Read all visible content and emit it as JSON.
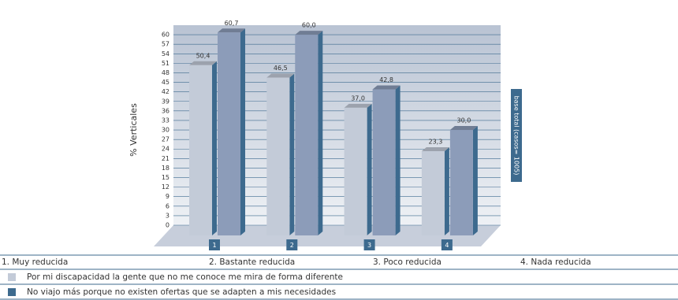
{
  "chart_data": {
    "type": "bar",
    "y_label": "% Verticales",
    "side_note": "base total (casos= 1005)",
    "categories": [
      "1",
      "2",
      "3",
      "4"
    ],
    "category_names": [
      "1.  Muy reducida",
      "2.  Bastante reducida",
      "3.  Poco reducida",
      "4.  Nada reducida"
    ],
    "series": [
      {
        "name": "Por mi discapacidad la gente que no me conoce me mira de forma diferente",
        "color": "#c3cbd8",
        "values": [
          50.4,
          46.5,
          37.0,
          23.3
        ],
        "value_labels": [
          "50,4",
          "46,5",
          "37,0",
          "23,3"
        ]
      },
      {
        "name": "No viajo más porque no existen ofertas que se adapten a mis necesidades",
        "color": "#8c9cb9",
        "values": [
          60.7,
          60.0,
          42.8,
          30.0
        ],
        "value_labels": [
          "60,7",
          "60,0",
          "42,8",
          "30,0"
        ]
      }
    ],
    "ylim": [
      0,
      63
    ],
    "yticks": [
      0,
      3,
      6,
      9,
      12,
      15,
      18,
      21,
      24,
      27,
      30,
      33,
      36,
      39,
      42,
      45,
      48,
      51,
      54,
      57,
      60
    ],
    "grid": true
  }
}
